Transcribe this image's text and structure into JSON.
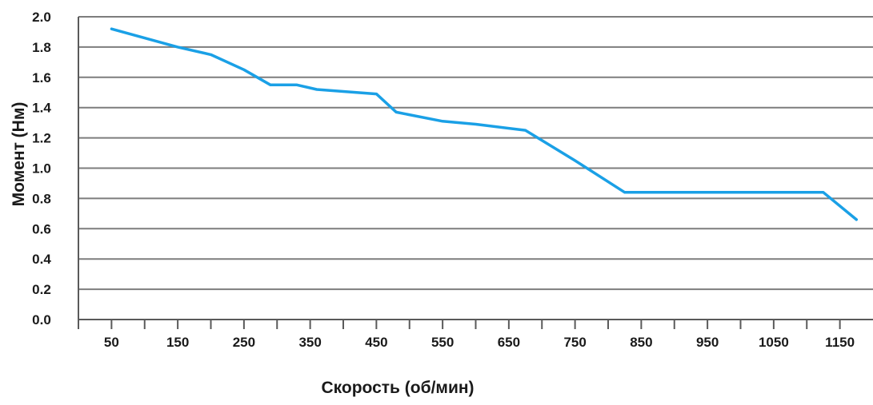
{
  "chart_data": {
    "type": "line",
    "title": "",
    "xlabel": "Скорость (об/мин)",
    "ylabel": "Момент (Нм)",
    "x_ticks": [
      50,
      150,
      250,
      350,
      450,
      550,
      650,
      750,
      850,
      950,
      1050,
      1150
    ],
    "y_ticks": [
      "0.0",
      "0.2",
      "0.4",
      "0.6",
      "0.8",
      "1.0",
      "1.2",
      "1.4",
      "1.6",
      "1.8",
      "2.0"
    ],
    "xlim": [
      0,
      1200
    ],
    "ylim": [
      0,
      2.0
    ],
    "grid": "horizontal",
    "legend": "none",
    "series": [
      {
        "color": "#1aa0e6",
        "x": [
          50,
          150,
          200,
          250,
          290,
          330,
          360,
          450,
          480,
          550,
          600,
          675,
          750,
          825,
          975,
          1125,
          1175
        ],
        "y": [
          1.92,
          1.8,
          1.75,
          1.65,
          1.55,
          1.55,
          1.52,
          1.49,
          1.37,
          1.31,
          1.29,
          1.25,
          1.05,
          0.84,
          0.84,
          0.84,
          0.66
        ]
      }
    ]
  }
}
